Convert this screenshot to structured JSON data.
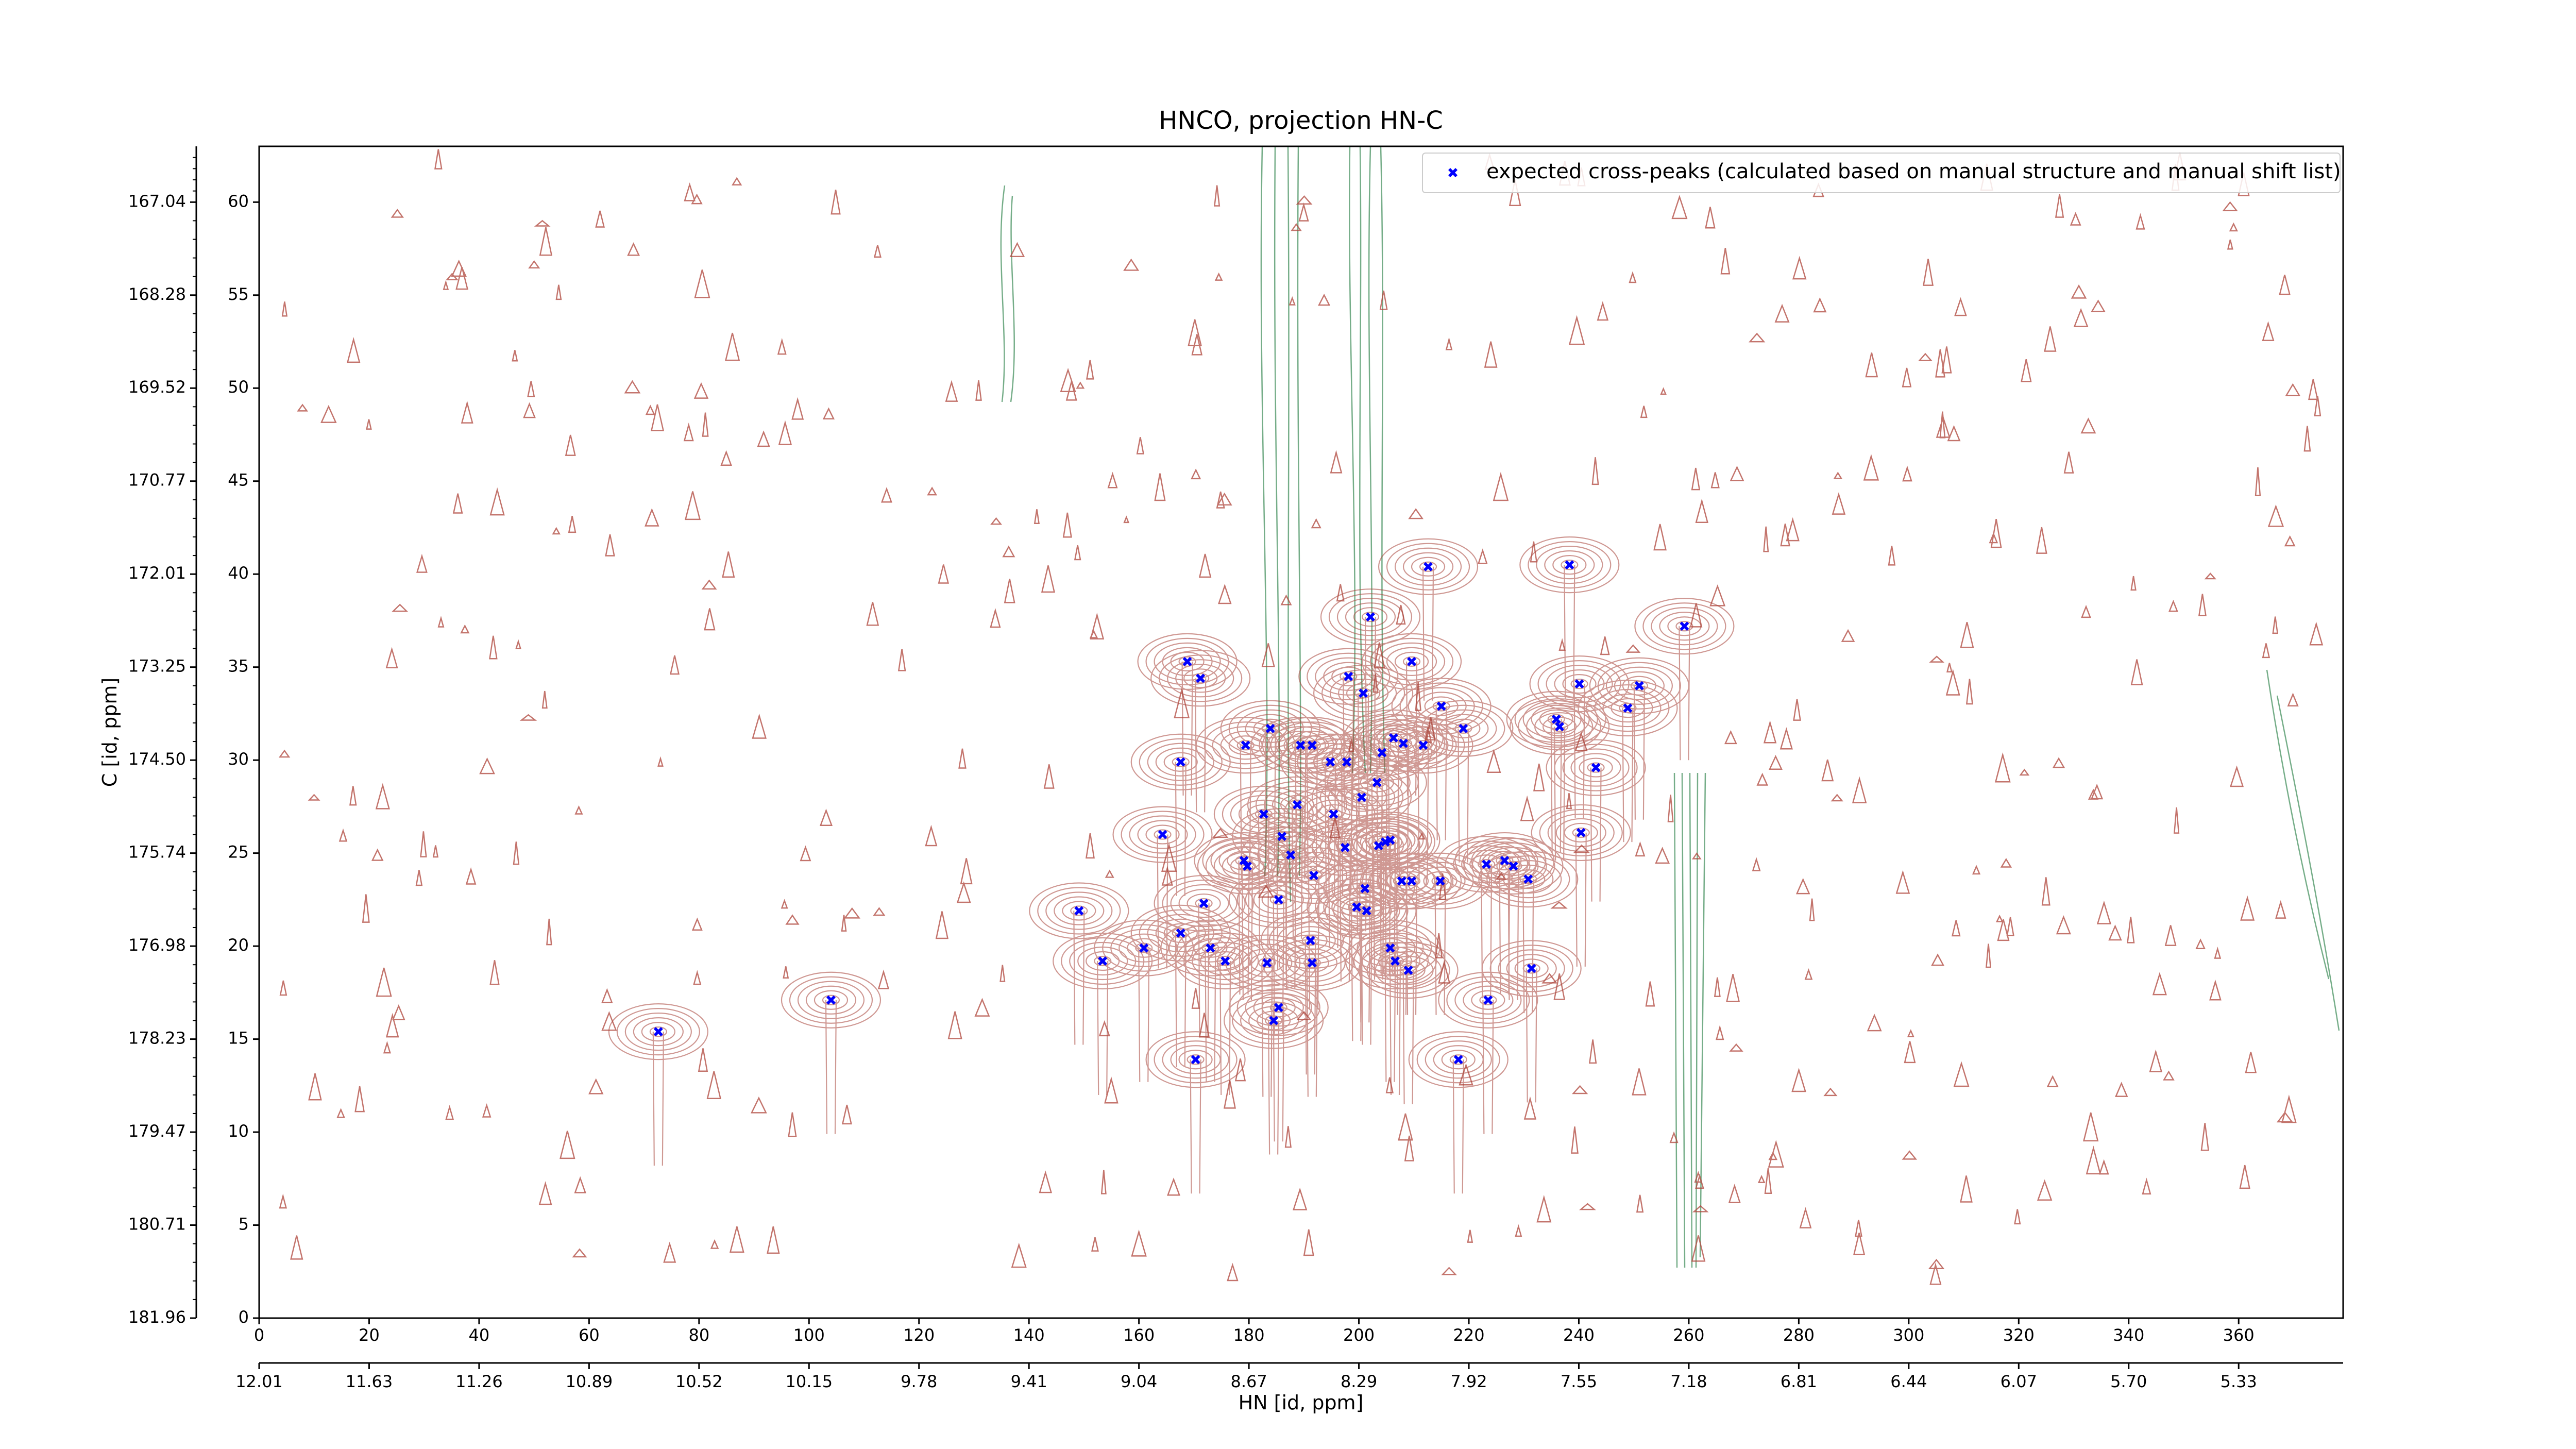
{
  "chart_data": {
    "type": "scatter",
    "title": "HNCO, projection HN-C",
    "xlabel": "HN [id, ppm]",
    "ylabel": "C [id, ppm]",
    "xlim": [
      0,
      379
    ],
    "ylim": [
      0,
      63
    ],
    "xticks": [
      0,
      20,
      40,
      60,
      80,
      100,
      120,
      140,
      160,
      180,
      200,
      220,
      240,
      260,
      280,
      300,
      320,
      340,
      360
    ],
    "yticks": [
      0,
      5,
      10,
      15,
      20,
      25,
      30,
      35,
      40,
      45,
      50,
      55,
      60
    ],
    "x2ticks": [
      {
        "value": 0,
        "label": "12.01"
      },
      {
        "value": 20,
        "label": "11.63"
      },
      {
        "value": 40,
        "label": "11.26"
      },
      {
        "value": 60,
        "label": "10.89"
      },
      {
        "value": 80,
        "label": "10.52"
      },
      {
        "value": 100,
        "label": "10.15"
      },
      {
        "value": 120,
        "label": "9.78"
      },
      {
        "value": 140,
        "label": "9.41"
      },
      {
        "value": 160,
        "label": "9.04"
      },
      {
        "value": 180,
        "label": "8.67"
      },
      {
        "value": 200,
        "label": "8.29"
      },
      {
        "value": 220,
        "label": "7.92"
      },
      {
        "value": 240,
        "label": "7.55"
      },
      {
        "value": 260,
        "label": "7.18"
      },
      {
        "value": 280,
        "label": "6.81"
      },
      {
        "value": 300,
        "label": "6.44"
      },
      {
        "value": 320,
        "label": "6.07"
      },
      {
        "value": 340,
        "label": "5.70"
      },
      {
        "value": 360,
        "label": "5.33"
      }
    ],
    "y2ticks": [
      {
        "value": 0,
        "label": "181.96"
      },
      {
        "value": 5,
        "label": "180.71"
      },
      {
        "value": 10,
        "label": "179.47"
      },
      {
        "value": 15,
        "label": "178.23"
      },
      {
        "value": 20,
        "label": "176.98"
      },
      {
        "value": 25,
        "label": "175.74"
      },
      {
        "value": 30,
        "label": "174.50"
      },
      {
        "value": 35,
        "label": "173.25"
      },
      {
        "value": 40,
        "label": "172.01"
      },
      {
        "value": 45,
        "label": "170.77"
      },
      {
        "value": 50,
        "label": "169.52"
      },
      {
        "value": 55,
        "label": "168.28"
      },
      {
        "value": 60,
        "label": "167.04"
      }
    ],
    "legend": "upper right",
    "series": [
      {
        "name": "expected cross-peaks (calculated based on manual structure and manual shift list)",
        "color": "#0000ff",
        "x": [
          72.6,
          104,
          149.1,
          153.4,
          160.9,
          164.3,
          167.6,
          167.6,
          168.8,
          171.2,
          170.3,
          171.8,
          173,
          175.7,
          179.1,
          179.7,
          179.4,
          182.7,
          183.9,
          183.3,
          184.5,
          185.4,
          185.4,
          186,
          187.6,
          188.8,
          189.4,
          191.5,
          191.2,
          191.5,
          191.8,
          194.8,
          195.4,
          197.8,
          197.5,
          198.1,
          199.6,
          200.5,
          200.8,
          201.1,
          201.4,
          202.1,
          203.3,
          203.6,
          204.2,
          204.8,
          205.7,
          205.7,
          206.3,
          206.6,
          207.8,
          208.1,
          209,
          209.6,
          209.6,
          211.7,
          212.6,
          214.8,
          215,
          218.1,
          219,
          223.2,
          223.5,
          226.5,
          228.1,
          230.8,
          231.4,
          235.9,
          236.5,
          238.3,
          240.1,
          240.4,
          243.1,
          248.9,
          251,
          259.2
        ],
        "y": [
          15.4,
          17.1,
          21.9,
          19.2,
          19.9,
          26,
          29.9,
          20.7,
          35.3,
          34.4,
          13.9,
          22.3,
          19.9,
          19.2,
          24.6,
          24.3,
          30.8,
          27.1,
          31.7,
          19.1,
          16,
          16.7,
          22.5,
          25.9,
          24.9,
          27.6,
          30.8,
          30.8,
          20.3,
          19.1,
          23.8,
          29.9,
          27.1,
          29.9,
          25.3,
          34.5,
          22.1,
          28,
          33.6,
          23.1,
          21.9,
          37.7,
          28.8,
          25.4,
          30.4,
          25.6,
          25.7,
          19.9,
          31.2,
          19.2,
          23.5,
          30.9,
          18.7,
          23.5,
          35.3,
          30.8,
          40.4,
          23.5,
          32.9,
          13.9,
          31.7,
          24.4,
          17.1,
          24.6,
          24.3,
          23.6,
          18.8,
          32.2,
          31.8,
          40.5,
          34.1,
          26.1,
          29.6,
          32.8,
          34,
          37.2
        ]
      }
    ]
  }
}
